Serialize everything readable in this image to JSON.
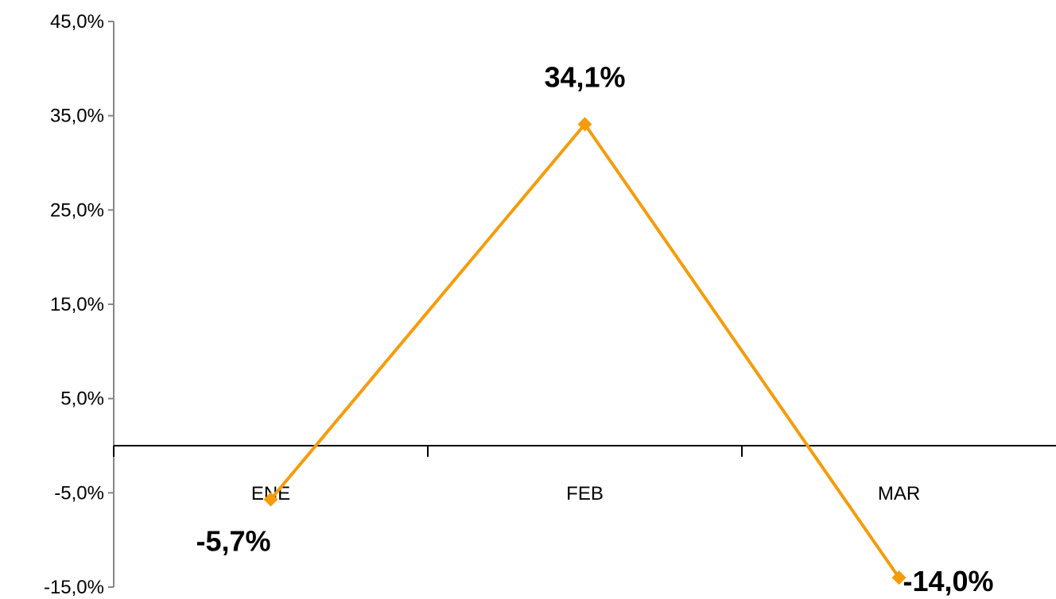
{
  "chart_data": {
    "type": "line",
    "title": "",
    "xlabel": "",
    "ylabel": "",
    "categories": [
      "ENE",
      "FEB",
      "MAR"
    ],
    "series": [
      {
        "values": [
          -5.7,
          34.1,
          -14.0
        ],
        "color": "#f59c0b",
        "marker": "diamond",
        "data_labels": [
          "-5,7%",
          "34,1%",
          "-14,0%"
        ]
      }
    ],
    "ylim": [
      -15,
      45
    ],
    "y_ticks": [
      45,
      35,
      25,
      15,
      5,
      -5,
      -15
    ],
    "y_tick_labels": [
      "45,0%",
      "35,0%",
      "25,0%",
      "15,0%",
      "5,0%",
      "-5,0%",
      "-15,0%"
    ],
    "grid": false,
    "legend": "none"
  }
}
